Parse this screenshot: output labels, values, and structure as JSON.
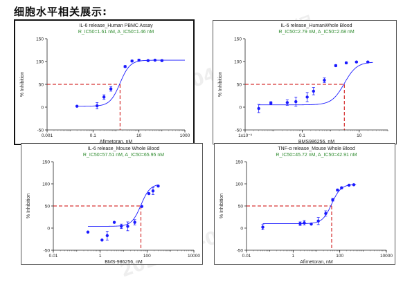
{
  "heading": "细胞水平相关展示:",
  "watermarks": [
    "2024-06-04",
    "2024-06-04",
    "药智数据",
    "药智数据"
  ],
  "colors": {
    "data": "#1a1aff",
    "ref": "#cc0000",
    "fit": "#1a1aff",
    "subtitle": "#2e8b2e"
  },
  "chart_data": [
    {
      "type": "scatter",
      "title": "IL-6 release_Human PBMC Assay",
      "subtitle": "R_IC50=1.61  nM,  A_IC50=1.46  nM",
      "xlabel": "Afimetoran,  nM",
      "ylabel": "% Inhibition",
      "xscale": "log",
      "xlim": [
        0.001,
        1000
      ],
      "ylim": [
        -50,
        150
      ],
      "xticks": [
        0.001,
        0.1,
        10,
        1000
      ],
      "xtick_labels": [
        "0.001",
        "0.1",
        "10",
        "1000"
      ],
      "yticks": [
        -50,
        0,
        50,
        100,
        150
      ],
      "ytick_labels": [
        "-50",
        "0",
        "50",
        "100",
        "150"
      ],
      "ic50": 1.5,
      "hill": 2.0,
      "bottom": 2,
      "top": 103,
      "fit_from": 0.02,
      "fit_to": 1000,
      "points": [
        {
          "x": 0.02,
          "y": 2,
          "err": 0
        },
        {
          "x": 0.15,
          "y": 3,
          "err": 7
        },
        {
          "x": 0.3,
          "y": 22,
          "err": 5
        },
        {
          "x": 0.6,
          "y": 40,
          "err": 5
        },
        {
          "x": 2.5,
          "y": 89,
          "err": 2
        },
        {
          "x": 5,
          "y": 101,
          "err": 2
        },
        {
          "x": 10,
          "y": 103,
          "err": 2
        },
        {
          "x": 25,
          "y": 102,
          "err": 1
        },
        {
          "x": 50,
          "y": 103,
          "err": 1
        },
        {
          "x": 100,
          "y": 102,
          "err": 2
        }
      ]
    },
    {
      "type": "scatter",
      "title": "IL-6 release_HumanWhole Blood",
      "subtitle": "R_IC50=2.79  nM,  A_IC50=2.68  nM",
      "xlabel": "BMS986256,  nM",
      "ylabel": "% Inhibition",
      "xscale": "log",
      "xlim": [
        0.001,
        100
      ],
      "ylim": [
        -50,
        150
      ],
      "xticks": [
        0.001,
        0.1,
        10
      ],
      "xtick_labels": [
        "1x10⁻³",
        "0.1",
        "10"
      ],
      "yticks": [
        -50,
        0,
        50,
        100,
        150
      ],
      "ytick_labels": [
        "-50",
        "0",
        "50",
        "100",
        "150"
      ],
      "ic50": 3.0,
      "hill": 2.0,
      "bottom": 5,
      "top": 99,
      "fit_from": 0.003,
      "fit_to": 30,
      "points": [
        {
          "x": 0.003,
          "y": -3,
          "err": 9
        },
        {
          "x": 0.008,
          "y": 9,
          "err": 3
        },
        {
          "x": 0.03,
          "y": 10,
          "err": 6
        },
        {
          "x": 0.06,
          "y": 12,
          "err": 10
        },
        {
          "x": 0.15,
          "y": 22,
          "err": 10
        },
        {
          "x": 0.25,
          "y": 35,
          "err": 8
        },
        {
          "x": 0.6,
          "y": 59,
          "err": 5
        },
        {
          "x": 1.5,
          "y": 91,
          "err": 2
        },
        {
          "x": 3.5,
          "y": 97,
          "err": 2
        },
        {
          "x": 8,
          "y": 99,
          "err": 1
        },
        {
          "x": 20,
          "y": 99,
          "err": 1
        }
      ]
    },
    {
      "type": "scatter",
      "title": "IL-6 release_Mouse  Whole Blood",
      "subtitle": "R_IC50=57.51  nM,  A_IC50=65.95  nM",
      "xlabel": "BMS-986256,  nM",
      "ylabel": "% Inhibition",
      "xscale": "log",
      "xlim": [
        0.01,
        10000
      ],
      "ylim": [
        -50,
        150
      ],
      "xticks": [
        0.01,
        1,
        100,
        10000
      ],
      "xtick_labels": [
        "0.01",
        "1",
        "100",
        "10000"
      ],
      "yticks": [
        -50,
        0,
        50,
        100,
        150
      ],
      "ytick_labels": [
        "-50",
        "0",
        "50",
        "100",
        "150"
      ],
      "ic50": 55,
      "hill": 2.2,
      "bottom": 4,
      "top": 100,
      "fit_from": 0.3,
      "fit_to": 300,
      "points": [
        {
          "x": 0.3,
          "y": -9,
          "err": 0
        },
        {
          "x": 1.2,
          "y": -27,
          "err": 0
        },
        {
          "x": 2,
          "y": -17,
          "err": 10
        },
        {
          "x": 4,
          "y": 13,
          "err": 0
        },
        {
          "x": 8,
          "y": 4,
          "err": 5
        },
        {
          "x": 15,
          "y": 4,
          "err": 10
        },
        {
          "x": 30,
          "y": 13,
          "err": 6
        },
        {
          "x": 60,
          "y": 49,
          "err": 0
        },
        {
          "x": 120,
          "y": 78,
          "err": 0
        },
        {
          "x": 180,
          "y": 84,
          "err": 8
        },
        {
          "x": 300,
          "y": 95,
          "err": 0
        }
      ]
    },
    {
      "type": "scatter",
      "title": "TNF-α release_Mouse  Whole Blood",
      "subtitle": "R_IC50=45.72  nM,  A_IC50=42.91  nM",
      "xlabel": "Afimetoran,  nM",
      "ylabel": "% Inhibition",
      "xscale": "log",
      "xlim": [
        0.01,
        10000
      ],
      "ylim": [
        -50,
        150
      ],
      "xticks": [
        0.01,
        1,
        100,
        10000
      ],
      "xtick_labels": [
        "0.01",
        "1",
        "100",
        "10000"
      ],
      "yticks": [
        -50,
        0,
        50,
        100,
        150
      ],
      "ytick_labels": [
        "-50",
        "0",
        "50",
        "100",
        "150"
      ],
      "ic50": 45,
      "hill": 2.2,
      "bottom": 10,
      "top": 99,
      "fit_from": 0.05,
      "fit_to": 500,
      "points": [
        {
          "x": 0.05,
          "y": 2,
          "err": 6
        },
        {
          "x": 2,
          "y": 10,
          "err": 4
        },
        {
          "x": 3,
          "y": 12,
          "err": 5
        },
        {
          "x": 6,
          "y": 9,
          "err": 0
        },
        {
          "x": 12,
          "y": 16,
          "err": 8
        },
        {
          "x": 25,
          "y": 33,
          "err": 6
        },
        {
          "x": 50,
          "y": 64,
          "err": 3
        },
        {
          "x": 80,
          "y": 86,
          "err": 2
        },
        {
          "x": 120,
          "y": 91,
          "err": 2
        },
        {
          "x": 250,
          "y": 97,
          "err": 1
        },
        {
          "x": 400,
          "y": 98,
          "err": 1
        }
      ]
    }
  ]
}
